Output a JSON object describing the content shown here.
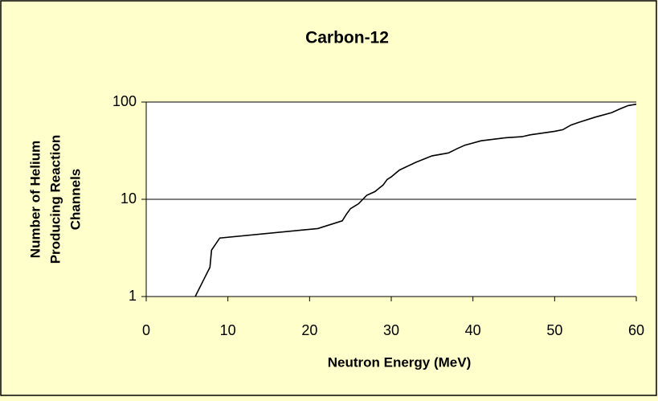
{
  "chart_data": {
    "type": "line",
    "title": "Carbon-12",
    "xlabel": "Neutron Energy (MeV)",
    "ylabel": [
      "Number of Helium",
      "Producing Reaction",
      "Channels"
    ],
    "yscale": "log",
    "grid": true,
    "xlim": [
      0,
      60
    ],
    "xticks": [
      0,
      10,
      20,
      30,
      40,
      50,
      60
    ],
    "ylim": [
      1,
      100
    ],
    "yticks": [
      1,
      10,
      100
    ],
    "series": [
      {
        "color": "#000000",
        "x": [
          6,
          7.8,
          8,
          9,
          21,
          24,
          24.5,
          25,
          26,
          27,
          28,
          28.5,
          29,
          29.5,
          30,
          31,
          33,
          35,
          37,
          38,
          39,
          41,
          44,
          46,
          47,
          50,
          51,
          52,
          53,
          55,
          57,
          58,
          59,
          60
        ],
        "values": [
          1,
          2,
          3,
          4,
          5,
          6,
          7,
          8,
          9,
          11,
          12,
          13,
          14,
          16,
          17,
          20,
          24,
          28,
          30,
          33,
          36,
          40,
          43,
          44,
          46,
          50,
          52,
          58,
          62,
          70,
          78,
          85,
          92,
          95
        ]
      }
    ]
  }
}
